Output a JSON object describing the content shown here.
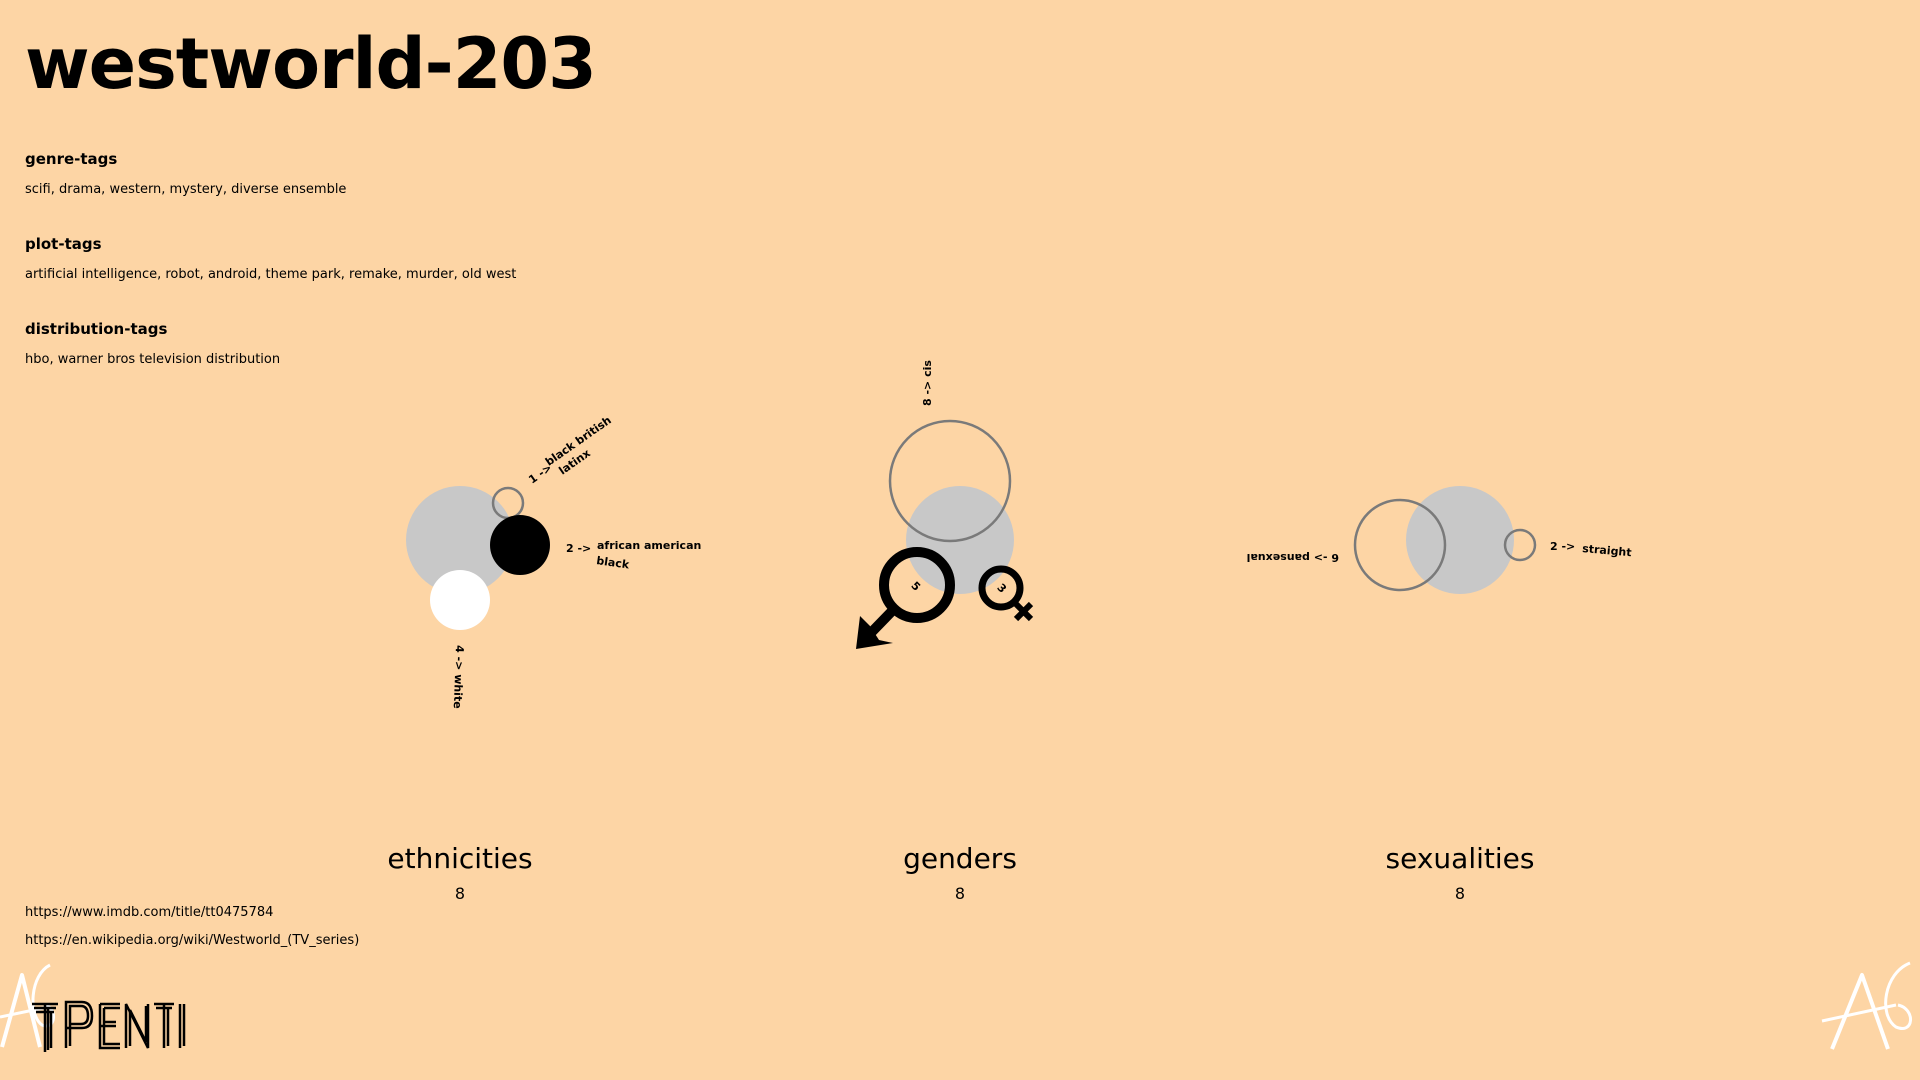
{
  "page": {
    "title": "westworld-203"
  },
  "sections": [
    {
      "heading": "genre-tags",
      "text": "scifi, drama, western, mystery, diverse ensemble"
    },
    {
      "heading": "plot-tags",
      "text": "artificial intelligence, robot, android, theme park, remake, murder, old west"
    },
    {
      "heading": "distribution-tags",
      "text": "hbo, warner bros television distribution"
    }
  ],
  "diagrams": {
    "ethnicities": {
      "title": "ethnicities",
      "count": "8",
      "labels": {
        "top_arrow": "1 ->",
        "top_line1": "black british",
        "top_line2": "latinx",
        "right_arrow": "2 ->",
        "right_line1": "african american",
        "right_line2": "black",
        "bottom": "4 -> white"
      },
      "groups": [
        {
          "name": "black british / latinx",
          "value": 1
        },
        {
          "name": "african american / black",
          "value": 2
        },
        {
          "name": "white",
          "value": 4
        }
      ]
    },
    "genders": {
      "title": "genders",
      "count": "8",
      "labels": {
        "top": "8 -> cis",
        "male_count": "5",
        "female_count": "3"
      },
      "groups": [
        {
          "name": "cis",
          "value": 8
        },
        {
          "name": "male",
          "value": 5
        },
        {
          "name": "female",
          "value": 3
        }
      ]
    },
    "sexualities": {
      "title": "sexualities",
      "count": "8",
      "labels": {
        "left": "6 -> pansexual",
        "right_arrow": "2 ->",
        "right_name": "straight"
      },
      "groups": [
        {
          "name": "pansexual",
          "value": 6
        },
        {
          "name": "straight",
          "value": 2
        }
      ]
    }
  },
  "links": {
    "imdb": "https://www.imdb.com/title/tt0475784",
    "wikipedia": "https://en.wikipedia.org/wiki/Westworld_(TV_series)"
  },
  "branding": {
    "logo_icon": "tpenti-logo",
    "corner_icon": "a6-mark-icon"
  },
  "colors": {
    "background": "#fdd5a5",
    "neutral_circle": "#c8c8c8",
    "outline": "#7a7a7a",
    "ink": "#000000",
    "white": "#ffffff"
  }
}
